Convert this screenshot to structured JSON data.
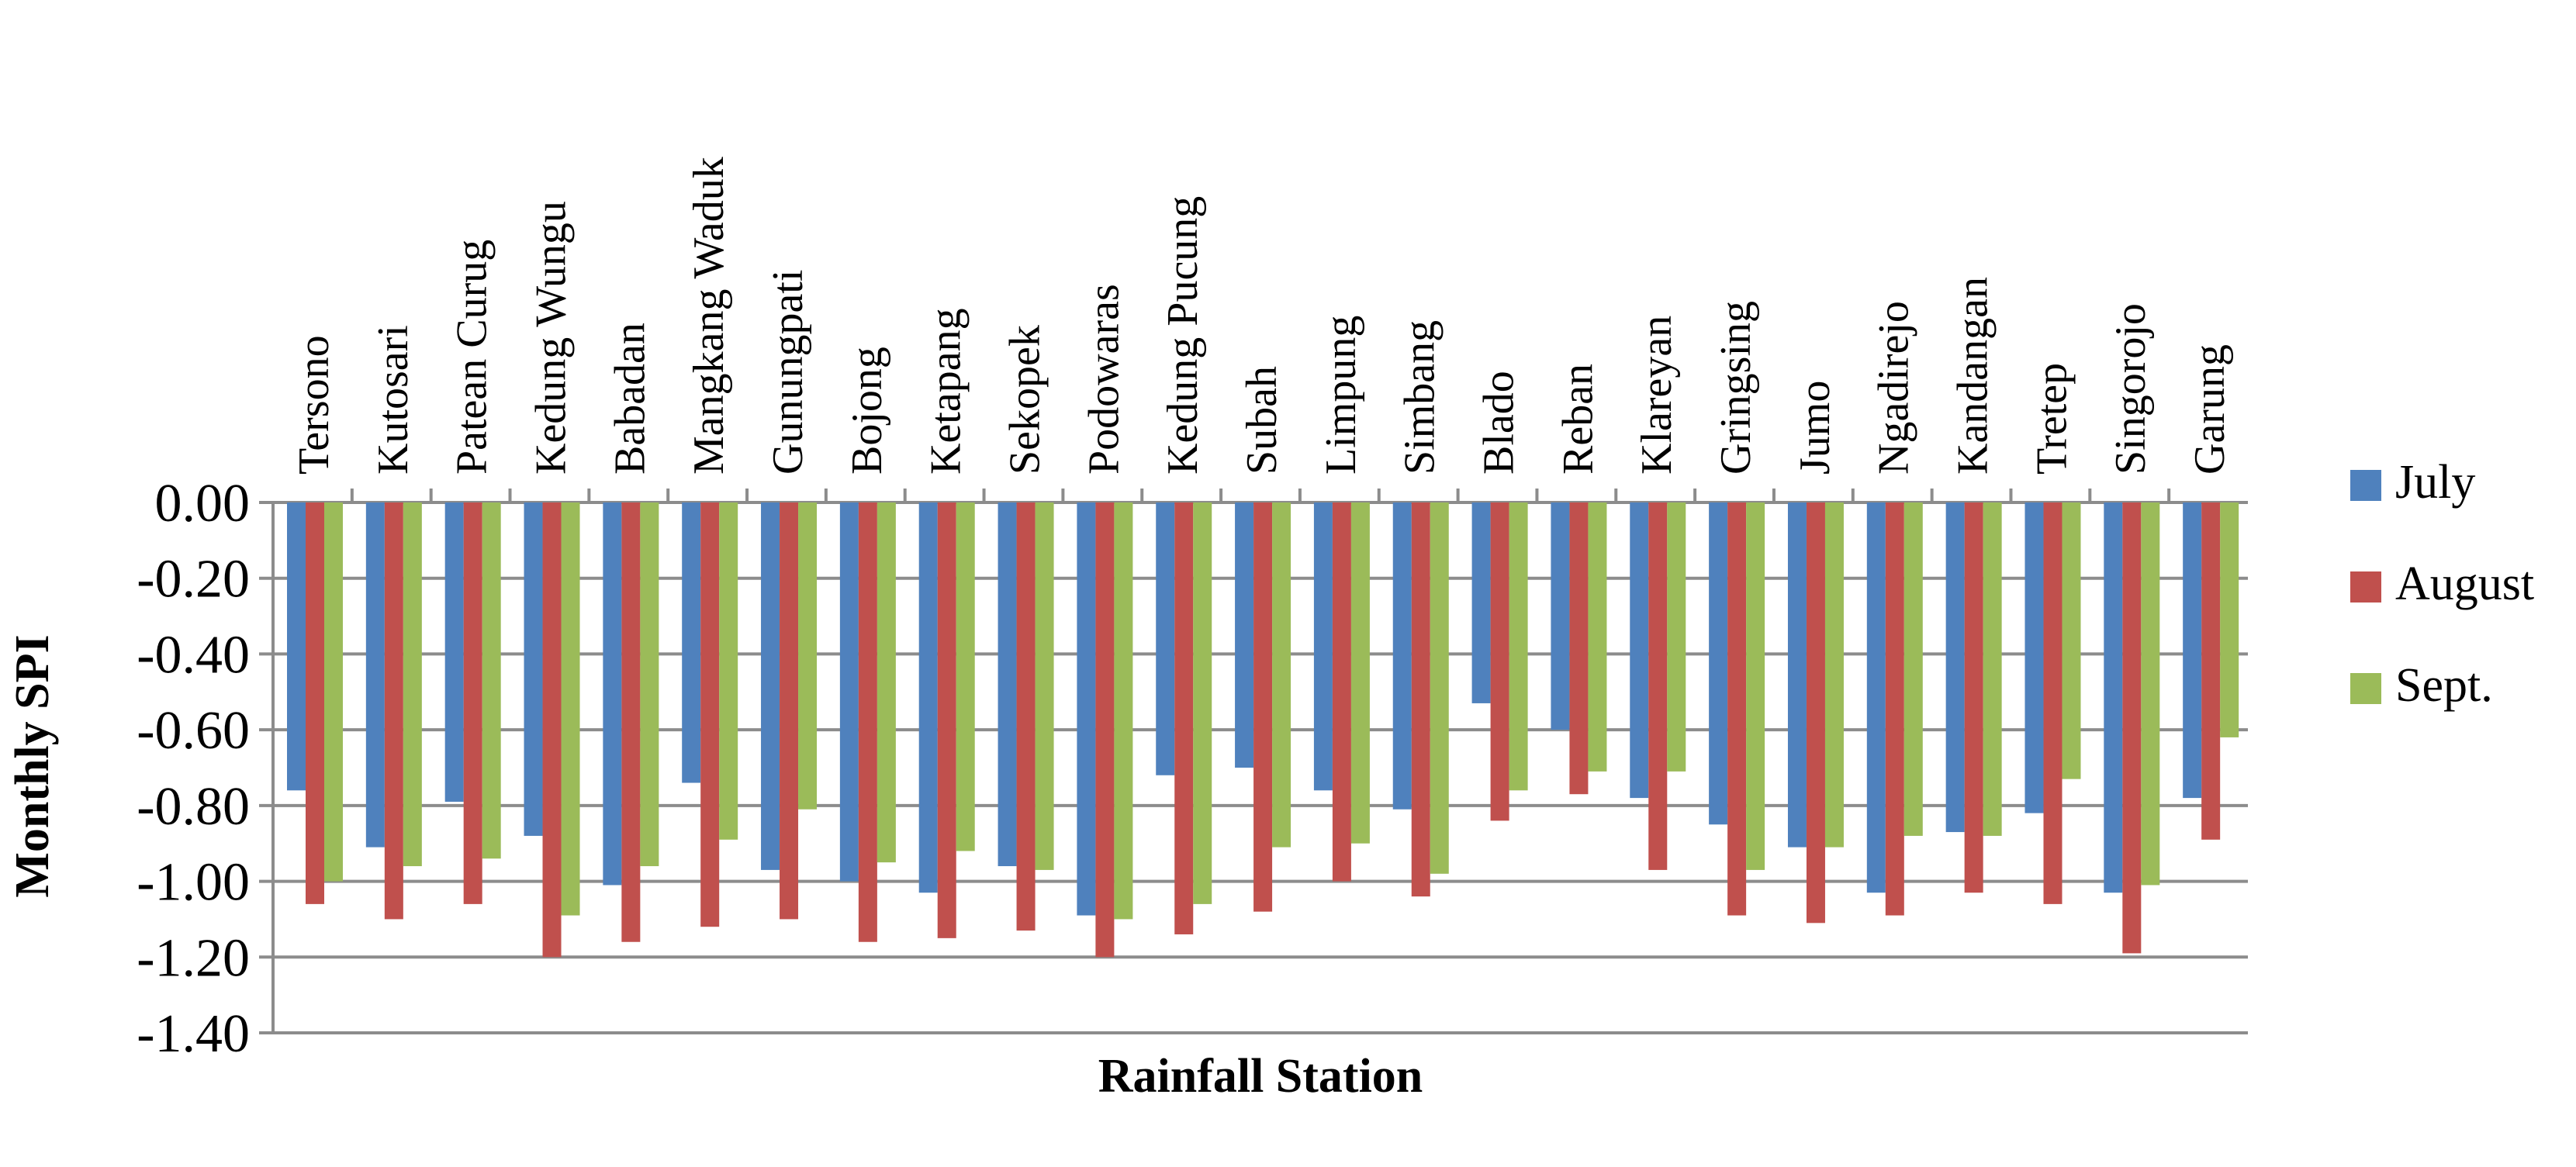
{
  "chart_data": {
    "type": "bar",
    "title": "",
    "xlabel": "Rainfall Station",
    "ylabel": "Monthly SPI",
    "ylim": [
      -1.4,
      0.0
    ],
    "yticks": [
      "0.00",
      "-0.20",
      "-0.40",
      "-0.60",
      "-0.80",
      "-1.00",
      "-1.20",
      "-1.40"
    ],
    "ytick_values": [
      0.0,
      -0.2,
      -0.4,
      -0.6,
      -0.8,
      -1.0,
      -1.2,
      -1.4
    ],
    "grid": true,
    "legend_position": "right",
    "categories": [
      "Tersono",
      "Kutosari",
      "Patean Curug",
      "Kedung Wungu",
      "Babadan",
      "Mangkang Waduk",
      "Gunungpati",
      "Bojong",
      "Ketapang",
      "Sekopek",
      "Podowaras",
      "Kedung Pucung",
      "Subah",
      "Limpung",
      "Simbang",
      "Blado",
      "Reban",
      "Klareyan",
      "Gringsing",
      "Jumo",
      "Ngadirejo",
      "Kandangan",
      "Tretep",
      "Singorojo",
      "Garung"
    ],
    "series": [
      {
        "name": "July",
        "color": "#4f81bd",
        "values": [
          -0.76,
          -0.91,
          -0.79,
          -0.88,
          -1.01,
          -0.74,
          -0.97,
          -1.0,
          -1.03,
          -0.96,
          -1.09,
          -0.72,
          -0.7,
          -0.76,
          -0.81,
          -0.53,
          -0.6,
          -0.78,
          -0.85,
          -0.91,
          -1.03,
          -0.87,
          -0.82,
          -1.03,
          -0.78
        ]
      },
      {
        "name": "August",
        "color": "#c0504d",
        "values": [
          -1.06,
          -1.1,
          -1.06,
          -1.2,
          -1.16,
          -1.12,
          -1.1,
          -1.16,
          -1.15,
          -1.13,
          -1.2,
          -1.14,
          -1.08,
          -1.0,
          -1.04,
          -0.84,
          -0.77,
          -0.97,
          -1.09,
          -1.11,
          -1.09,
          -1.03,
          -1.06,
          -1.19,
          -0.89
        ]
      },
      {
        "name": "Sept.",
        "color": "#9bbb59",
        "values": [
          -1.0,
          -0.96,
          -0.94,
          -1.09,
          -0.96,
          -0.89,
          -0.81,
          -0.95,
          -0.92,
          -0.97,
          -1.1,
          -1.06,
          -0.91,
          -0.9,
          -0.98,
          -0.76,
          -0.71,
          -0.71,
          -0.97,
          -0.91,
          -0.88,
          -0.88,
          -0.73,
          -1.01,
          -0.62
        ]
      }
    ]
  }
}
